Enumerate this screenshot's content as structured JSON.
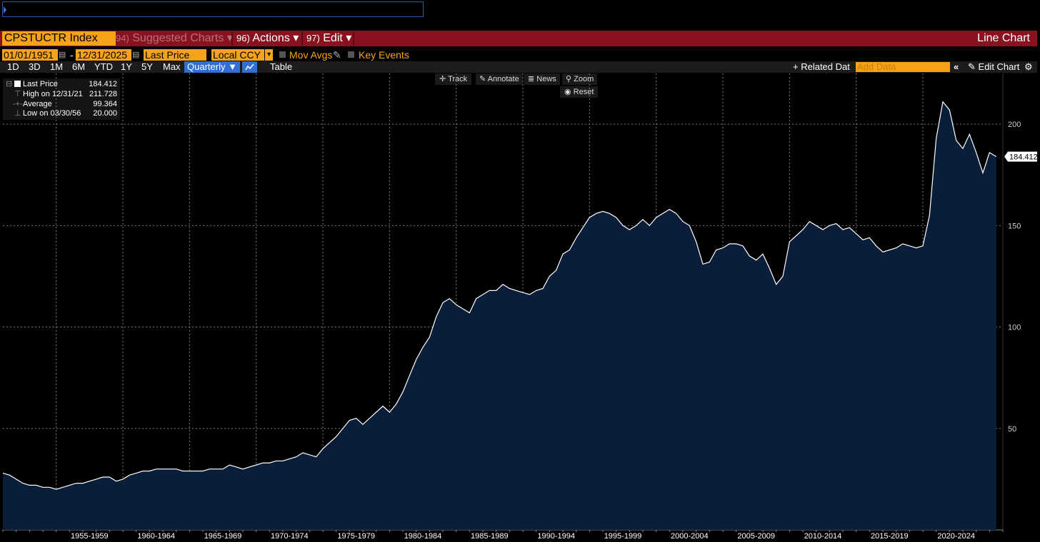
{
  "header": {
    "ticker": "CPSTUCTR Index",
    "menus": [
      {
        "num": "94)",
        "label": "Suggested Charts",
        "caret": "▾"
      },
      {
        "num": "96)",
        "label": "Actions",
        "caret": "▾"
      },
      {
        "num": "97)",
        "label": "Edit",
        "caret": "▾"
      }
    ],
    "chart_kind": "Line Chart"
  },
  "controls": {
    "start_date": "01/01/1951",
    "dash": "-",
    "end_date": "12/31/2025",
    "field": "Last Price",
    "currency": "Local CCY",
    "mov_avgs": "Mov Avgs",
    "key_events": "Key Events",
    "periods": [
      "1D",
      "3D",
      "1M",
      "6M",
      "YTD",
      "1Y",
      "5Y",
      "Max"
    ],
    "frequency": "Quarterly ▼",
    "table": "Table",
    "related": "+ Related Dat",
    "add_data_placeholder": "Add Data",
    "edit_chart": "Edit Chart"
  },
  "tools": {
    "track": "Track",
    "annotate": "Annotate",
    "news": "News",
    "zoom": "Zoom",
    "reset": "Reset"
  },
  "legend": {
    "rows": [
      {
        "label": "Last Price",
        "value": "184.412"
      },
      {
        "label": "High on 12/31/21",
        "value": "211.728"
      },
      {
        "label": "Average",
        "value": "99.364"
      },
      {
        "label": "Low on 03/30/56",
        "value": "20.000"
      }
    ]
  },
  "colors": {
    "accent": "#f7a21b",
    "header_red": "#8a1220",
    "area_fill": "#0a1e3a",
    "line": "#ffffff"
  },
  "chart_data": {
    "type": "area",
    "title": "",
    "xlabel": "",
    "ylabel": "",
    "frequency": "Quarterly",
    "last_value_label": "184.412",
    "y_ticks": [
      50,
      100,
      150,
      200
    ],
    "x_tick_labels": [
      "1955-1959",
      "1960-1964",
      "1965-1969",
      "1970-1974",
      "1975-1979",
      "1980-1984",
      "1985-1989",
      "1990-1994",
      "1995-1999",
      "2000-2004",
      "2005-2009",
      "2010-2014",
      "2015-2019",
      "2020-2024"
    ],
    "x_range": [
      1951.0,
      2026.0
    ],
    "ylim": [
      0,
      225
    ],
    "grid": true,
    "series": [
      {
        "x": [
          1951.0,
          1951.5,
          1952.0,
          1952.5,
          1953.0,
          1953.5,
          1954.0,
          1954.5,
          1955.0,
          1955.5,
          1956.0,
          1956.5,
          1957.0,
          1957.5,
          1958.0,
          1958.5,
          1959.0,
          1959.5,
          1960.0,
          1960.5,
          1961.0,
          1961.5,
          1962.0,
          1962.5,
          1963.0,
          1963.5,
          1964.0,
          1964.5,
          1965.0,
          1965.5,
          1966.0,
          1966.5,
          1967.0,
          1967.5,
          1968.0,
          1968.5,
          1969.0,
          1969.5,
          1970.0,
          1970.5,
          1971.0,
          1971.5,
          1972.0,
          1972.5,
          1973.0,
          1973.5,
          1974.0,
          1974.5,
          1975.0,
          1975.5,
          1976.0,
          1976.5,
          1977.0,
          1977.5,
          1978.0,
          1978.5,
          1979.0,
          1979.5,
          1980.0,
          1980.5,
          1981.0,
          1981.5,
          1982.0,
          1982.5,
          1983.0,
          1983.5,
          1984.0,
          1984.5,
          1985.0,
          1985.5,
          1986.0,
          1986.5,
          1987.0,
          1987.5,
          1988.0,
          1988.5,
          1989.0,
          1989.5,
          1990.0,
          1990.5,
          1991.0,
          1991.5,
          1992.0,
          1992.5,
          1993.0,
          1993.5,
          1994.0,
          1994.5,
          1995.0,
          1995.5,
          1996.0,
          1996.5,
          1997.0,
          1997.5,
          1998.0,
          1998.5,
          1999.0,
          1999.5,
          2000.0,
          2000.5,
          2001.0,
          2001.5,
          2002.0,
          2002.5,
          2003.0,
          2003.5,
          2004.0,
          2004.5,
          2005.0,
          2005.5,
          2006.0,
          2006.5,
          2007.0,
          2007.5,
          2008.0,
          2008.5,
          2009.0,
          2009.5,
          2010.0,
          2010.5,
          2011.0,
          2011.5,
          2012.0,
          2012.5,
          2013.0,
          2013.5,
          2014.0,
          2014.5,
          2015.0,
          2015.5,
          2016.0,
          2016.5,
          2017.0,
          2017.5,
          2018.0,
          2018.5,
          2019.0,
          2019.5,
          2020.0,
          2020.5,
          2021.0,
          2021.5,
          2022.0,
          2022.5,
          2023.0,
          2023.5,
          2024.0,
          2024.5,
          2025.0,
          2025.5
        ],
        "values": [
          28,
          27,
          25,
          23,
          22,
          22,
          21,
          21,
          20,
          21,
          22,
          23,
          23,
          24,
          25,
          26,
          26,
          24,
          25,
          27,
          28,
          29,
          29,
          30,
          30,
          30,
          30,
          29,
          29,
          29,
          29,
          30,
          30,
          30,
          32,
          31,
          30,
          31,
          32,
          33,
          33,
          34,
          34,
          35,
          36,
          38,
          37,
          36,
          40,
          43,
          46,
          50,
          54,
          55,
          52,
          55,
          58,
          61,
          58,
          62,
          68,
          76,
          84,
          90,
          95,
          105,
          112,
          114,
          111,
          109,
          107,
          114,
          116,
          118,
          118,
          121,
          119,
          118,
          117,
          116,
          118,
          119,
          125,
          128,
          136,
          138,
          144,
          149,
          154,
          156,
          157,
          156,
          154,
          150,
          148,
          150,
          153,
          150,
          154,
          156,
          158,
          156,
          152,
          150,
          142,
          131,
          132,
          138,
          139,
          141,
          141,
          140,
          135,
          133,
          136,
          129,
          121,
          125,
          142,
          145,
          148,
          152,
          150,
          148,
          150,
          151,
          148,
          149,
          146,
          143,
          144,
          140,
          137,
          138,
          139,
          141,
          140,
          139,
          140,
          155,
          193,
          211,
          207,
          192,
          188,
          195,
          186,
          176,
          186,
          184
        ]
      }
    ]
  }
}
